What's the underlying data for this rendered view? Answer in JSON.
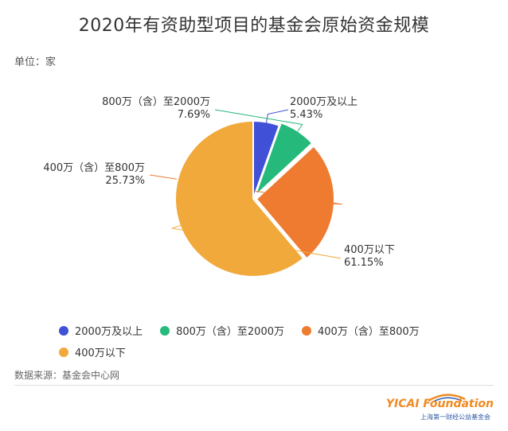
{
  "title": "2020年有资助型项目的基金会原始资金规模",
  "unit_label": "单位：家",
  "source_label": "数据来源：基金会中心网",
  "logo": {
    "text": "YICAI Foundation",
    "subtext": "上海第一财经公益基金会"
  },
  "chart_data": {
    "type": "pie",
    "title": "2020年有资助型项目的基金会原始资金规模",
    "categories": [
      "2000万及以上",
      "800万（含）至2000万",
      "400万（含）至800万",
      "400万以下"
    ],
    "values": [
      5.43,
      7.69,
      25.73,
      61.15
    ],
    "value_labels": [
      "5.43%",
      "7.69%",
      "25.73%",
      "61.15%"
    ],
    "colors": [
      "#4051d8",
      "#26b97c",
      "#ee7b30",
      "#f1a93b"
    ],
    "legend_position": "bottom"
  }
}
